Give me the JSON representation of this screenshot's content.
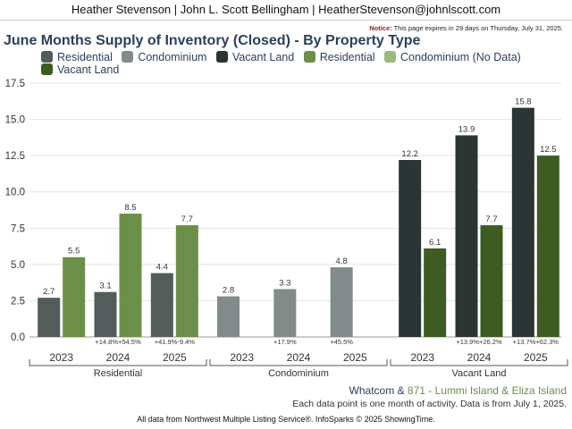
{
  "header": {
    "text": "Heather Stevenson | John L. Scott Bellingham | HeatherStevenson@johnlscott.com"
  },
  "notice": {
    "label": "Notice:",
    "text": " This page expires in 29 days on Thursday, July 31, 2025."
  },
  "title": "June Months Supply of Inventory (Closed) - By Property Type",
  "legend": [
    {
      "label": "Residential",
      "color": "#545c5b"
    },
    {
      "label": "Condominium",
      "color": "#838b8a"
    },
    {
      "label": "Vacant Land",
      "color": "#2b3533"
    },
    {
      "label": "Residential",
      "color": "#6b8f48"
    },
    {
      "label": "Condominium (No Data)",
      "color": "#98bd78"
    },
    {
      "label": "Vacant Land",
      "color": "#3c5c21"
    }
  ],
  "chart_data": {
    "type": "bar",
    "ylim": [
      0,
      17.5
    ],
    "yticks": [
      "0.0",
      "2.5",
      "5.0",
      "7.5",
      "10.0",
      "12.5",
      "15.0",
      "17.5"
    ],
    "grid": true,
    "groups": [
      {
        "name": "Residential",
        "years": [
          {
            "year": "2023",
            "bars": [
              {
                "value": 2.7,
                "label": "2.7",
                "color": "#545c5b"
              },
              {
                "value": 5.5,
                "label": "5.5",
                "color": "#6b8f48"
              }
            ],
            "pct": []
          },
          {
            "year": "2024",
            "bars": [
              {
                "value": 3.1,
                "label": "3.1",
                "color": "#545c5b"
              },
              {
                "value": 8.5,
                "label": "8.5",
                "color": "#6b8f48"
              }
            ],
            "pct": [
              "+14.8%",
              "+54.5%"
            ]
          },
          {
            "year": "2025",
            "bars": [
              {
                "value": 4.4,
                "label": "4.4",
                "color": "#545c5b"
              },
              {
                "value": 7.7,
                "label": "7.7",
                "color": "#6b8f48"
              }
            ],
            "pct": [
              "+41.9%",
              "-9.4%"
            ]
          }
        ]
      },
      {
        "name": "Condominium",
        "years": [
          {
            "year": "2023",
            "bars": [
              {
                "value": 2.8,
                "label": "2.8",
                "color": "#838b8a"
              }
            ],
            "pct": []
          },
          {
            "year": "2024",
            "bars": [
              {
                "value": 3.3,
                "label": "3.3",
                "color": "#838b8a"
              }
            ],
            "pct": [
              "+17.9%"
            ]
          },
          {
            "year": "2025",
            "bars": [
              {
                "value": 4.8,
                "label": "4.8",
                "color": "#838b8a"
              }
            ],
            "pct": [
              "+45.5%"
            ]
          }
        ]
      },
      {
        "name": "Vacant Land",
        "years": [
          {
            "year": "2023",
            "bars": [
              {
                "value": 12.2,
                "label": "12.2",
                "color": "#2b3533"
              },
              {
                "value": 6.1,
                "label": "6.1",
                "color": "#3c5c21"
              }
            ],
            "pct": []
          },
          {
            "year": "2024",
            "bars": [
              {
                "value": 13.9,
                "label": "13.9",
                "color": "#2b3533"
              },
              {
                "value": 7.7,
                "label": "7.7",
                "color": "#3c5c21"
              }
            ],
            "pct": [
              "+13.9%",
              "+26.2%"
            ]
          },
          {
            "year": "2025",
            "bars": [
              {
                "value": 15.8,
                "label": "15.8",
                "color": "#2b3533"
              },
              {
                "value": 12.5,
                "label": "12.5",
                "color": "#3c5c21"
              }
            ],
            "pct": [
              "+13.7%",
              "+62.3%"
            ]
          }
        ]
      }
    ]
  },
  "footer": {
    "area_prefix": "Whatcom",
    "area_amp": " & ",
    "area_name": "871 - Lummi Island & Eliza Island",
    "area_prefix_color": "#2b3f5c",
    "area_name_color": "#6b8f48",
    "note": "Each data point is one month of activity. Data is from July 1, 2025.",
    "source": "All data from Northwest Multiple Listing Service®. InfoSparks © 2025 ShowingTime."
  }
}
